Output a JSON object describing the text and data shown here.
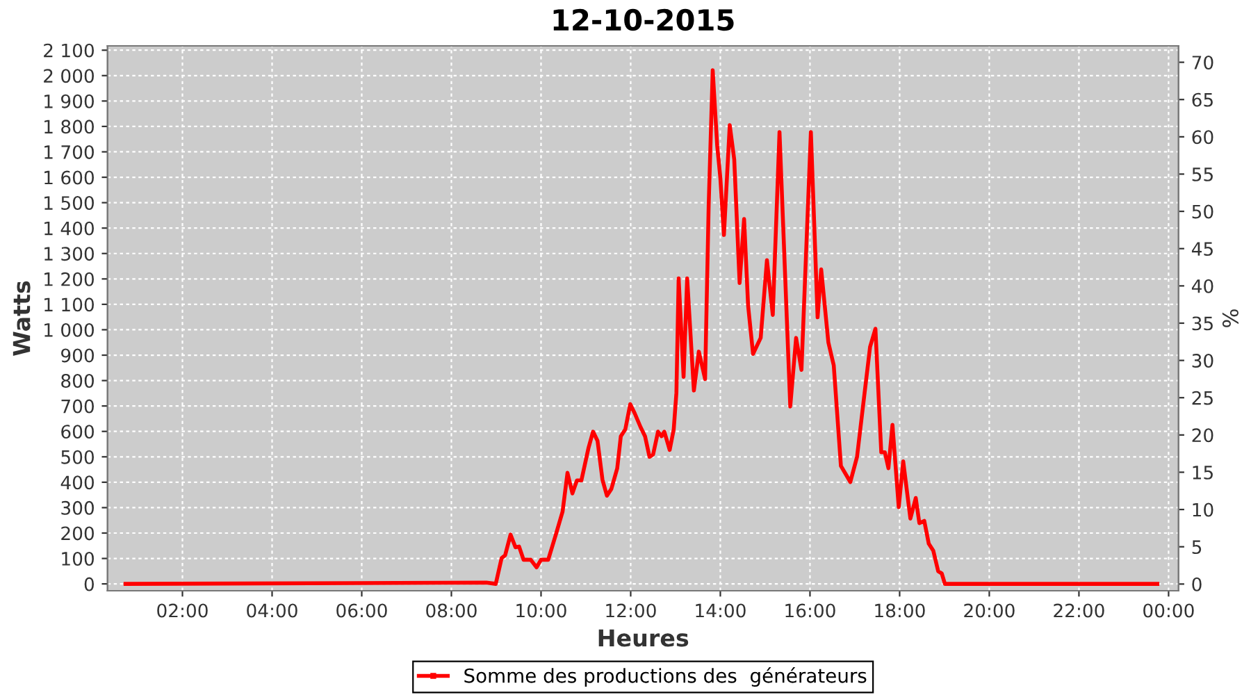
{
  "chart_data": {
    "type": "line",
    "title": "12-10-2015",
    "xlabel": "Heures",
    "ylabel": "Watts",
    "y2label": "%",
    "xlim": [
      0.33,
      24.22
    ],
    "ylim": [
      -27,
      2117
    ],
    "y2lim": [
      -0.9,
      72.2
    ],
    "xticks": [
      {
        "value": 2,
        "label": "02:00"
      },
      {
        "value": 4,
        "label": "04:00"
      },
      {
        "value": 6,
        "label": "06:00"
      },
      {
        "value": 8,
        "label": "08:00"
      },
      {
        "value": 10,
        "label": "10:00"
      },
      {
        "value": 12,
        "label": "12:00"
      },
      {
        "value": 14,
        "label": "14:00"
      },
      {
        "value": 16,
        "label": "16:00"
      },
      {
        "value": 18,
        "label": "18:00"
      },
      {
        "value": 20,
        "label": "20:00"
      },
      {
        "value": 22,
        "label": "22:00"
      },
      {
        "value": 24,
        "label": "00:00"
      }
    ],
    "yticks": [
      {
        "value": 0,
        "label": "0"
      },
      {
        "value": 100,
        "label": "100"
      },
      {
        "value": 200,
        "label": "200"
      },
      {
        "value": 300,
        "label": "300"
      },
      {
        "value": 400,
        "label": "400"
      },
      {
        "value": 500,
        "label": "500"
      },
      {
        "value": 600,
        "label": "600"
      },
      {
        "value": 700,
        "label": "700"
      },
      {
        "value": 800,
        "label": "800"
      },
      {
        "value": 900,
        "label": "900"
      },
      {
        "value": 1000,
        "label": "1 000"
      },
      {
        "value": 1100,
        "label": "1 100"
      },
      {
        "value": 1200,
        "label": "1 200"
      },
      {
        "value": 1300,
        "label": "1 300"
      },
      {
        "value": 1400,
        "label": "1 400"
      },
      {
        "value": 1500,
        "label": "1 500"
      },
      {
        "value": 1600,
        "label": "1 600"
      },
      {
        "value": 1700,
        "label": "1 700"
      },
      {
        "value": 1800,
        "label": "1 800"
      },
      {
        "value": 1900,
        "label": "1 900"
      },
      {
        "value": 2000,
        "label": "2 000"
      },
      {
        "value": 2100,
        "label": "2 100"
      }
    ],
    "y2ticks": [
      0,
      5,
      10,
      15,
      20,
      25,
      30,
      35,
      40,
      45,
      50,
      55,
      60,
      65,
      70
    ],
    "grid": true,
    "legend": "bottom",
    "marker": "none",
    "line_style": "solid",
    "series": [
      {
        "name": "Somme des productions des  générateurs",
        "color": "#ff0000",
        "x": [
          0.73,
          8.78,
          8.99,
          9.12,
          9.2,
          9.32,
          9.43,
          9.51,
          9.61,
          9.77,
          9.9,
          10.0,
          10.16,
          10.33,
          10.48,
          10.59,
          10.7,
          10.8,
          10.9,
          11.06,
          11.16,
          11.26,
          11.37,
          11.47,
          11.57,
          11.7,
          11.78,
          11.88,
          11.99,
          12.09,
          12.22,
          12.32,
          12.42,
          12.5,
          12.61,
          12.69,
          12.75,
          12.87,
          12.96,
          13.02,
          13.07,
          13.18,
          13.26,
          13.41,
          13.52,
          13.66,
          13.74,
          13.83,
          13.93,
          14.0,
          14.08,
          14.21,
          14.31,
          14.43,
          14.53,
          14.62,
          14.73,
          14.9,
          15.04,
          15.17,
          15.32,
          15.56,
          15.69,
          15.81,
          16.02,
          16.17,
          16.25,
          16.41,
          16.53,
          16.69,
          16.9,
          17.05,
          17.17,
          17.34,
          17.46,
          17.59,
          17.67,
          17.75,
          17.84,
          17.98,
          18.08,
          18.24,
          18.36,
          18.44,
          18.55,
          18.65,
          18.75,
          18.86,
          18.94,
          19.01,
          23.75
        ],
        "values": [
          0,
          5,
          0,
          101,
          113,
          194,
          144,
          147,
          95,
          95,
          65,
          95,
          95,
          194,
          284,
          437,
          356,
          407,
          407,
          536,
          599,
          563,
          410,
          347,
          374,
          455,
          581,
          608,
          707,
          671,
          617,
          581,
          500,
          509,
          599,
          581,
          599,
          527,
          608,
          752,
          1202,
          815,
          1202,
          761,
          914,
          806,
          1490,
          2021,
          1724,
          1598,
          1373,
          1805,
          1670,
          1184,
          1436,
          1094,
          905,
          968,
          1274,
          1058,
          1778,
          698,
          968,
          842,
          1778,
          1049,
          1238,
          950,
          860,
          464,
          401,
          500,
          680,
          932,
          1004,
          518,
          518,
          455,
          626,
          302,
          482,
          257,
          338,
          239,
          248,
          158,
          131,
          50,
          41,
          0,
          0
        ]
      }
    ]
  }
}
